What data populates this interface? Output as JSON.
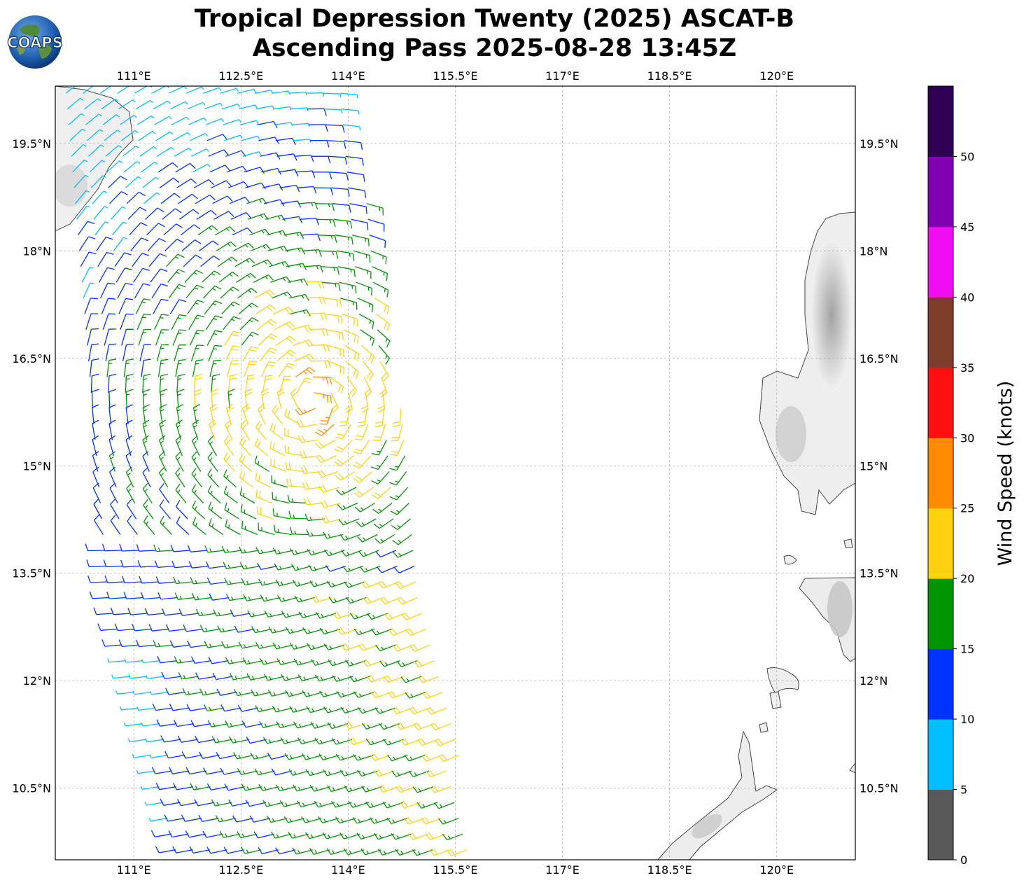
{
  "title": {
    "line1": "Tropical Depression Twenty (2025) ASCAT-B",
    "line2": "Ascending Pass 2025-08-28 13:45Z"
  },
  "logo": {
    "text": "COAPS"
  },
  "map": {
    "lon_range": [
      109.9,
      121.1
    ],
    "lat_range": [
      9.5,
      20.3
    ],
    "grid": true,
    "lon_ticks": [
      "111°E",
      "112.5°E",
      "114°E",
      "115.5°E",
      "117°E",
      "118.5°E",
      "120°E"
    ],
    "lat_ticks": [
      "19.5°N",
      "18°N",
      "16.5°N",
      "15°N",
      "13.5°N",
      "12°N",
      "10.5°N"
    ],
    "lon_tick_values": [
      111,
      112.5,
      114,
      115.5,
      117,
      118.5,
      120
    ],
    "lat_tick_values": [
      19.5,
      18,
      16.5,
      15,
      13.5,
      12,
      10.5
    ],
    "storm_center": {
      "lon": 113.5,
      "lat": 15.9
    },
    "swath": "ascending pass, western half of map"
  },
  "colorbar": {
    "label": "Wind Speed (knots)",
    "ticks": [
      "0",
      "5",
      "10",
      "15",
      "20",
      "25",
      "30",
      "35",
      "40",
      "45",
      "50"
    ],
    "bins": [
      {
        "range": [
          0,
          5
        ],
        "color": "#595959"
      },
      {
        "range": [
          5,
          10
        ],
        "color": "#00bfff"
      },
      {
        "range": [
          10,
          15
        ],
        "color": "#0032ff"
      },
      {
        "range": [
          15,
          20
        ],
        "color": "#009600"
      },
      {
        "range": [
          20,
          25
        ],
        "color": "#ffd20f"
      },
      {
        "range": [
          25,
          30
        ],
        "color": "#ff8c00"
      },
      {
        "range": [
          30,
          35
        ],
        "color": "#ff1010"
      },
      {
        "range": [
          35,
          40
        ],
        "color": "#7f3c2a"
      },
      {
        "range": [
          40,
          45
        ],
        "color": "#f00ef0"
      },
      {
        "range": [
          45,
          50
        ],
        "color": "#8200b4"
      },
      {
        "range": [
          50,
          55
        ],
        "color": "#2d0055"
      }
    ]
  }
}
